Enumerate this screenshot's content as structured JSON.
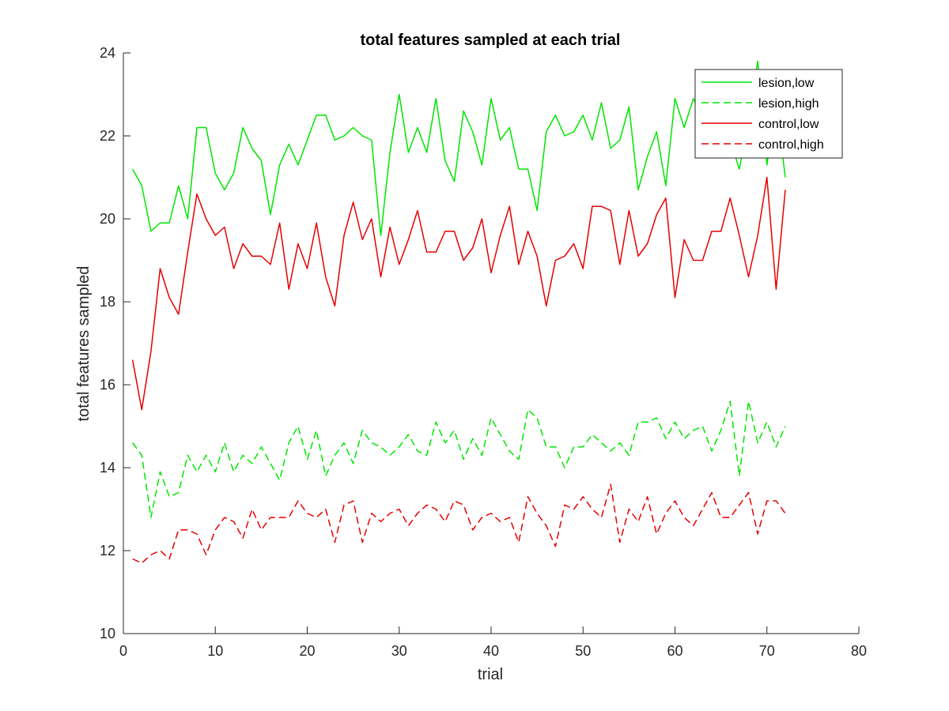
{
  "chart_data": {
    "type": "line",
    "title": "total features sampled at each trial",
    "xlabel": "trial",
    "ylabel": "total features sampled",
    "xlim": [
      0,
      80
    ],
    "ylim": [
      10,
      24
    ],
    "xticks": [
      0,
      10,
      20,
      30,
      40,
      50,
      60,
      70,
      80
    ],
    "yticks": [
      10,
      12,
      14,
      16,
      18,
      20,
      22,
      24
    ],
    "grid": false,
    "legend_location": "top-right",
    "x": [
      1,
      2,
      3,
      4,
      5,
      6,
      7,
      8,
      9,
      10,
      11,
      12,
      13,
      14,
      15,
      16,
      17,
      18,
      19,
      20,
      21,
      22,
      23,
      24,
      25,
      26,
      27,
      28,
      29,
      30,
      31,
      32,
      33,
      34,
      35,
      36,
      37,
      38,
      39,
      40,
      41,
      42,
      43,
      44,
      45,
      46,
      47,
      48,
      49,
      50,
      51,
      52,
      53,
      54,
      55,
      56,
      57,
      58,
      59,
      60,
      61,
      62,
      63,
      64,
      65,
      66,
      67,
      68,
      69,
      70,
      71,
      72
    ],
    "series": [
      {
        "name": "lesion,low",
        "color": "#00e600",
        "style": "solid",
        "values": [
          21.2,
          20.8,
          19.7,
          19.9,
          19.9,
          20.8,
          20.0,
          22.2,
          22.2,
          21.1,
          20.7,
          21.1,
          22.2,
          21.7,
          21.4,
          20.1,
          21.3,
          21.8,
          21.3,
          21.9,
          22.5,
          22.5,
          21.9,
          22.0,
          22.2,
          22.0,
          21.9,
          19.6,
          21.6,
          23.0,
          21.6,
          22.2,
          21.6,
          22.9,
          21.4,
          20.9,
          22.6,
          22.1,
          21.3,
          22.9,
          21.9,
          22.2,
          21.2,
          21.2,
          20.2,
          22.1,
          22.5,
          22.0,
          22.1,
          22.5,
          21.9,
          22.8,
          21.7,
          21.9,
          22.7,
          20.7,
          21.5,
          22.1,
          20.8,
          22.9,
          22.2,
          22.9,
          22.4,
          21.6,
          21.5,
          21.9,
          21.2,
          22.4,
          23.8,
          21.3,
          22.8,
          21.0
        ]
      },
      {
        "name": "lesion,high",
        "color": "#00e600",
        "style": "dashed",
        "values": [
          14.6,
          14.3,
          12.8,
          13.9,
          13.3,
          13.4,
          14.3,
          13.9,
          14.3,
          13.9,
          14.6,
          13.9,
          14.3,
          14.1,
          14.5,
          14.1,
          13.7,
          14.6,
          15.0,
          14.2,
          14.9,
          13.8,
          14.3,
          14.6,
          14.1,
          14.9,
          14.6,
          14.5,
          14.3,
          14.5,
          14.8,
          14.4,
          14.3,
          15.1,
          14.6,
          14.9,
          14.2,
          14.7,
          14.3,
          15.2,
          14.8,
          14.4,
          14.2,
          15.4,
          15.2,
          14.5,
          14.5,
          14.0,
          14.5,
          14.5,
          14.8,
          14.6,
          14.4,
          14.6,
          14.3,
          15.1,
          15.1,
          15.2,
          14.7,
          15.1,
          14.7,
          14.9,
          15.0,
          14.4,
          14.9,
          15.6,
          13.8,
          15.6,
          14.6,
          15.1,
          14.5,
          15.0
        ]
      },
      {
        "name": "control,low",
        "color": "#e60000",
        "style": "solid",
        "values": [
          16.6,
          15.4,
          16.8,
          18.8,
          18.1,
          17.7,
          19.2,
          20.6,
          20.0,
          19.6,
          19.8,
          18.8,
          19.4,
          19.1,
          19.1,
          18.9,
          19.9,
          18.3,
          19.4,
          18.8,
          19.9,
          18.6,
          17.9,
          19.6,
          20.4,
          19.5,
          20.0,
          18.6,
          19.8,
          18.9,
          19.5,
          20.2,
          19.2,
          19.2,
          19.7,
          19.7,
          19.0,
          19.3,
          20.0,
          18.7,
          19.6,
          20.3,
          18.9,
          19.7,
          19.1,
          17.9,
          19.0,
          19.1,
          19.4,
          18.8,
          20.3,
          20.3,
          20.2,
          18.9,
          20.2,
          19.1,
          19.4,
          20.1,
          20.5,
          18.1,
          19.5,
          19.0,
          19.0,
          19.7,
          19.7,
          20.5,
          19.6,
          18.6,
          19.6,
          21.0,
          18.3,
          20.7
        ]
      },
      {
        "name": "control,high",
        "color": "#e60000",
        "style": "dashed",
        "values": [
          11.8,
          11.7,
          11.9,
          12.0,
          11.8,
          12.5,
          12.5,
          12.4,
          11.9,
          12.5,
          12.8,
          12.7,
          12.3,
          13.0,
          12.5,
          12.8,
          12.8,
          12.8,
          13.2,
          12.9,
          12.8,
          13.0,
          12.2,
          13.1,
          13.2,
          12.2,
          12.9,
          12.7,
          12.9,
          13.0,
          12.6,
          12.9,
          13.1,
          13.0,
          12.7,
          13.2,
          13.1,
          12.5,
          12.8,
          12.9,
          12.7,
          12.8,
          12.2,
          13.3,
          12.9,
          12.6,
          12.1,
          13.1,
          13.0,
          13.3,
          13.0,
          12.8,
          13.6,
          12.2,
          13.0,
          12.7,
          13.3,
          12.4,
          12.9,
          13.2,
          12.8,
          12.6,
          13.0,
          13.4,
          12.8,
          12.8,
          13.1,
          13.4,
          12.4,
          13.2,
          13.2,
          12.9
        ]
      }
    ]
  }
}
